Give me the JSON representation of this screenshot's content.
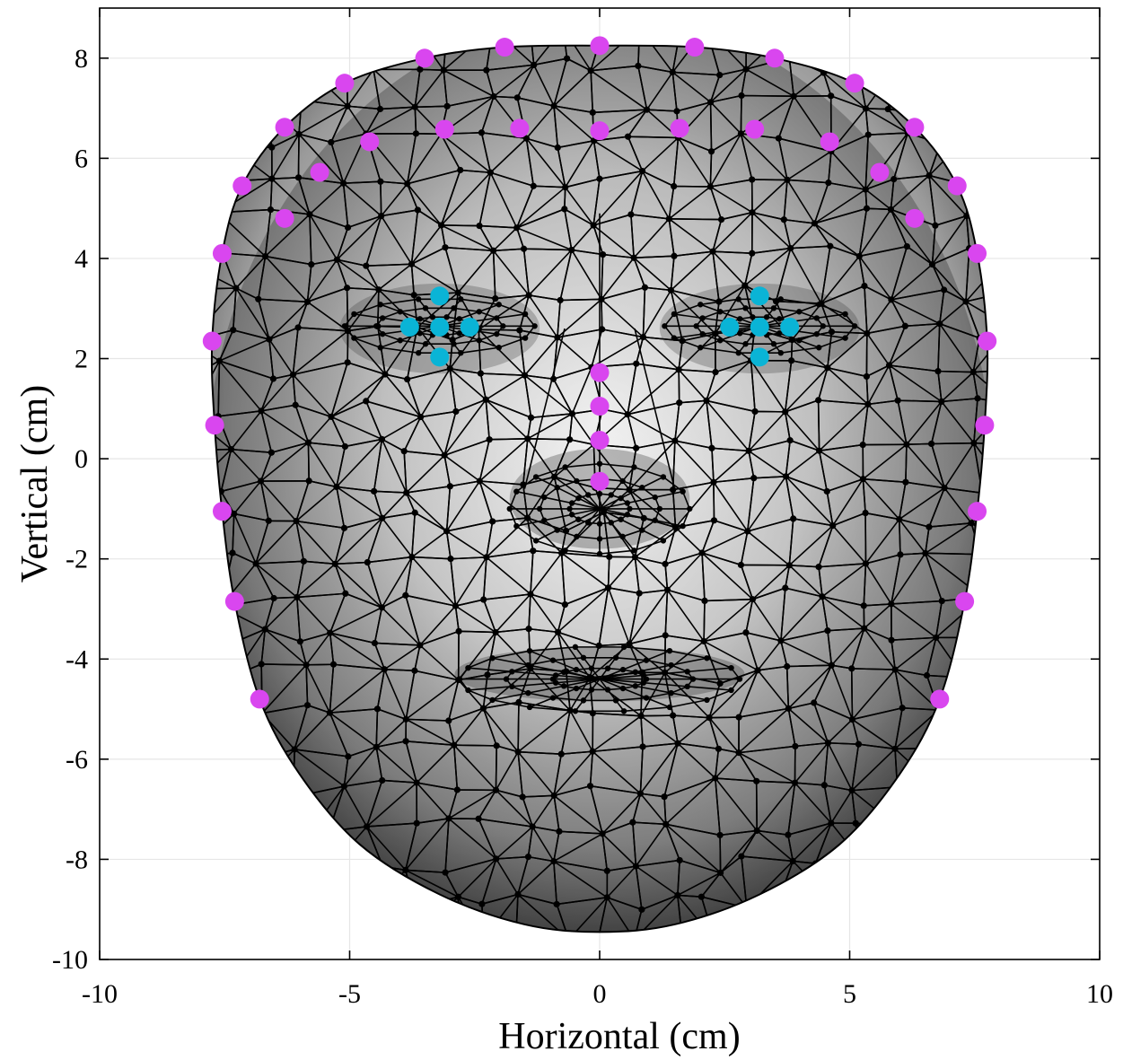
{
  "chart_data": {
    "type": "scatter",
    "title": "",
    "xlabel": "Horizontal (cm)",
    "ylabel": "Vertical (cm)",
    "xlim": [
      -10,
      10
    ],
    "ylim": [
      -10,
      9
    ],
    "xticks": [
      -10,
      -5,
      0,
      5,
      10
    ],
    "yticks": [
      8,
      6,
      4,
      2,
      0,
      -2,
      -4,
      -6,
      -8,
      -10
    ],
    "grid": true,
    "background_surface": "shaded 3D face with triangulated wireframe mesh (black nodes and edges)",
    "colors": {
      "landmark_magenta": "#d946ef",
      "landmark_cyan": "#0ab4d6",
      "mesh": "#000000"
    },
    "series": [
      {
        "marker_color": "#d946ef",
        "points": [
          {
            "x": 0.0,
            "y": 8.25
          },
          {
            "x": -1.9,
            "y": 8.22
          },
          {
            "x": 1.9,
            "y": 8.22
          },
          {
            "x": -3.5,
            "y": 8.0
          },
          {
            "x": 3.5,
            "y": 8.0
          },
          {
            "x": -5.1,
            "y": 7.5
          },
          {
            "x": 5.1,
            "y": 7.5
          },
          {
            "x": -6.3,
            "y": 6.62
          },
          {
            "x": 6.3,
            "y": 6.62
          },
          {
            "x": -7.15,
            "y": 5.45
          },
          {
            "x": 7.15,
            "y": 5.45
          },
          {
            "x": -7.55,
            "y": 4.1
          },
          {
            "x": 7.55,
            "y": 4.1
          },
          {
            "x": -7.75,
            "y": 2.35
          },
          {
            "x": 7.75,
            "y": 2.35
          },
          {
            "x": -7.7,
            "y": 0.67
          },
          {
            "x": 7.7,
            "y": 0.67
          },
          {
            "x": -7.55,
            "y": -1.05
          },
          {
            "x": 7.55,
            "y": -1.05
          },
          {
            "x": -7.3,
            "y": -2.85
          },
          {
            "x": 7.3,
            "y": -2.85
          },
          {
            "x": -6.8,
            "y": -4.8
          },
          {
            "x": 6.8,
            "y": -4.8
          },
          {
            "x": -4.6,
            "y": 6.33
          },
          {
            "x": 4.6,
            "y": 6.33
          },
          {
            "x": -3.1,
            "y": 6.58
          },
          {
            "x": 3.1,
            "y": 6.58
          },
          {
            "x": -1.6,
            "y": 6.6
          },
          {
            "x": 1.6,
            "y": 6.6
          },
          {
            "x": 0.0,
            "y": 6.55
          },
          {
            "x": -5.6,
            "y": 5.72
          },
          {
            "x": 5.6,
            "y": 5.72
          },
          {
            "x": -6.3,
            "y": 4.8
          },
          {
            "x": 6.3,
            "y": 4.8
          },
          {
            "x": 0.0,
            "y": 1.72
          },
          {
            "x": 0.0,
            "y": 1.05
          },
          {
            "x": 0.0,
            "y": 0.37
          },
          {
            "x": 0.0,
            "y": -0.45
          }
        ]
      },
      {
        "marker_color": "#0ab4d6",
        "points": [
          {
            "x": -3.2,
            "y": 3.25
          },
          {
            "x": -3.8,
            "y": 2.63
          },
          {
            "x": -3.2,
            "y": 2.63
          },
          {
            "x": -2.6,
            "y": 2.63
          },
          {
            "x": -3.2,
            "y": 2.03
          },
          {
            "x": 3.2,
            "y": 3.25
          },
          {
            "x": 2.6,
            "y": 2.63
          },
          {
            "x": 3.2,
            "y": 2.63
          },
          {
            "x": 3.8,
            "y": 2.63
          },
          {
            "x": 3.2,
            "y": 2.03
          }
        ]
      }
    ]
  }
}
